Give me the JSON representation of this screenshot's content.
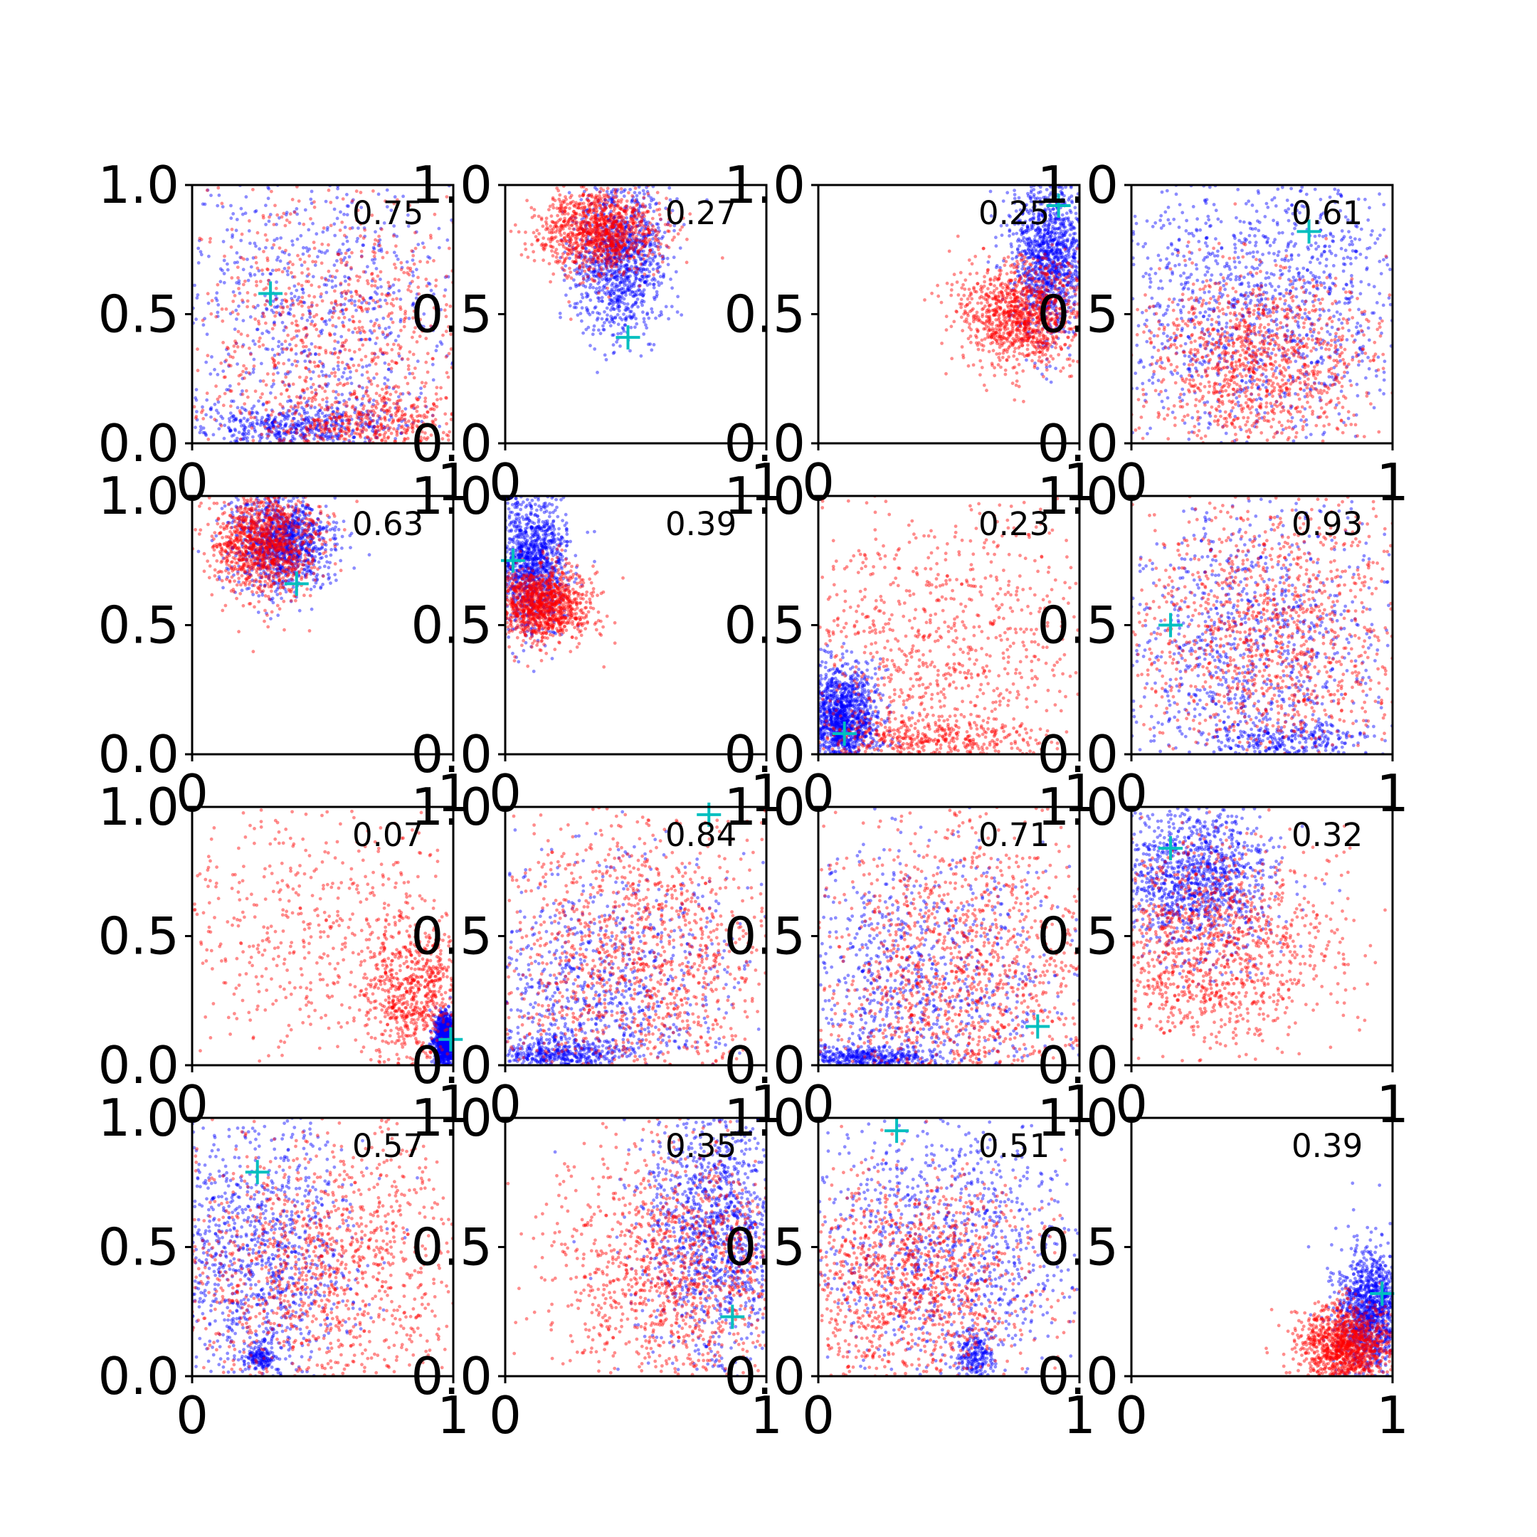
{
  "chart_data": {
    "type": "scatter",
    "grid_rows": 4,
    "grid_cols": 4,
    "xlim": [
      0,
      1
    ],
    "ylim": [
      0,
      1
    ],
    "xticks": [
      "0",
      "1"
    ],
    "yticks": [
      "0.0",
      "0.5",
      "1.0"
    ],
    "colors": {
      "series_a": "#0000ff",
      "series_b": "#ff0000",
      "marker": "#00bfbf"
    },
    "panels": [
      {
        "label": "0.75",
        "marker": [
          0.3,
          0.58
        ],
        "blue": [
          {
            "cx": 0.5,
            "cy": 0.5,
            "sx": 0.3,
            "sy": 0.3,
            "w": 0.6
          },
          {
            "cx": 0.4,
            "cy": 0.06,
            "sx": 0.18,
            "sy": 0.04,
            "w": 0.4
          }
        ],
        "red": [
          {
            "cx": 0.55,
            "cy": 0.4,
            "sx": 0.3,
            "sy": 0.3,
            "w": 0.7
          },
          {
            "cx": 0.7,
            "cy": 0.08,
            "sx": 0.2,
            "sy": 0.06,
            "w": 0.3
          }
        ]
      },
      {
        "label": "0.27",
        "marker": [
          0.47,
          0.41
        ],
        "blue": [
          {
            "cx": 0.44,
            "cy": 0.72,
            "sx": 0.09,
            "sy": 0.15,
            "w": 1
          }
        ],
        "red": [
          {
            "cx": 0.36,
            "cy": 0.82,
            "sx": 0.12,
            "sy": 0.08,
            "w": 1
          }
        ]
      },
      {
        "label": "0.25",
        "marker": [
          0.92,
          0.92
        ],
        "blue": [
          {
            "cx": 0.88,
            "cy": 0.72,
            "sx": 0.07,
            "sy": 0.15,
            "w": 1
          }
        ],
        "red": [
          {
            "cx": 0.78,
            "cy": 0.5,
            "sx": 0.12,
            "sy": 0.1,
            "w": 1
          }
        ]
      },
      {
        "label": "0.61",
        "marker": [
          0.68,
          0.82
        ],
        "blue": [
          {
            "cx": 0.5,
            "cy": 0.55,
            "sx": 0.3,
            "sy": 0.28,
            "w": 1
          }
        ],
        "red": [
          {
            "cx": 0.48,
            "cy": 0.32,
            "sx": 0.22,
            "sy": 0.18,
            "w": 1
          }
        ]
      },
      {
        "label": "0.63",
        "marker": [
          0.4,
          0.66
        ],
        "blue": [
          {
            "cx": 0.34,
            "cy": 0.82,
            "sx": 0.09,
            "sy": 0.09,
            "w": 1
          }
        ],
        "red": [
          {
            "cx": 0.28,
            "cy": 0.82,
            "sx": 0.1,
            "sy": 0.1,
            "w": 1
          }
        ]
      },
      {
        "label": "0.39",
        "marker": [
          0.03,
          0.75
        ],
        "blue": [
          {
            "cx": 0.1,
            "cy": 0.74,
            "sx": 0.07,
            "sy": 0.13,
            "w": 1
          }
        ],
        "red": [
          {
            "cx": 0.14,
            "cy": 0.58,
            "sx": 0.09,
            "sy": 0.07,
            "w": 1
          }
        ]
      },
      {
        "label": "0.23",
        "marker": [
          0.1,
          0.08
        ],
        "blue": [
          {
            "cx": 0.09,
            "cy": 0.14,
            "sx": 0.07,
            "sy": 0.1,
            "w": 1
          }
        ],
        "red": [
          {
            "cx": 0.45,
            "cy": 0.4,
            "sx": 0.3,
            "sy": 0.3,
            "w": 0.7
          },
          {
            "cx": 0.4,
            "cy": 0.06,
            "sx": 0.25,
            "sy": 0.04,
            "w": 0.3
          }
        ]
      },
      {
        "label": "0.93",
        "marker": [
          0.15,
          0.5
        ],
        "blue": [
          {
            "cx": 0.45,
            "cy": 0.4,
            "sx": 0.3,
            "sy": 0.3,
            "w": 0.8
          },
          {
            "cx": 0.6,
            "cy": 0.05,
            "sx": 0.15,
            "sy": 0.04,
            "w": 0.2
          }
        ],
        "red": [
          {
            "cx": 0.55,
            "cy": 0.45,
            "sx": 0.28,
            "sy": 0.28,
            "w": 1
          }
        ]
      },
      {
        "label": "0.07",
        "marker": [
          0.99,
          0.1
        ],
        "blue": [
          {
            "cx": 0.97,
            "cy": 0.1,
            "sx": 0.02,
            "sy": 0.05,
            "w": 1
          }
        ],
        "red": [
          {
            "cx": 0.85,
            "cy": 0.28,
            "sx": 0.1,
            "sy": 0.15,
            "w": 0.6
          },
          {
            "cx": 0.4,
            "cy": 0.55,
            "sx": 0.28,
            "sy": 0.25,
            "w": 0.4
          }
        ]
      },
      {
        "label": "0.84",
        "marker": [
          0.78,
          0.97
        ],
        "blue": [
          {
            "cx": 0.35,
            "cy": 0.3,
            "sx": 0.28,
            "sy": 0.25,
            "w": 0.7
          },
          {
            "cx": 0.2,
            "cy": 0.04,
            "sx": 0.12,
            "sy": 0.03,
            "w": 0.3
          }
        ],
        "red": [
          {
            "cx": 0.5,
            "cy": 0.4,
            "sx": 0.3,
            "sy": 0.3,
            "w": 1
          }
        ]
      },
      {
        "label": "0.71",
        "marker": [
          0.84,
          0.15
        ],
        "blue": [
          {
            "cx": 0.35,
            "cy": 0.3,
            "sx": 0.3,
            "sy": 0.28,
            "w": 0.7
          },
          {
            "cx": 0.2,
            "cy": 0.03,
            "sx": 0.15,
            "sy": 0.02,
            "w": 0.3
          }
        ],
        "red": [
          {
            "cx": 0.55,
            "cy": 0.35,
            "sx": 0.3,
            "sy": 0.3,
            "w": 1
          }
        ]
      },
      {
        "label": "0.32",
        "marker": [
          0.15,
          0.84
        ],
        "blue": [
          {
            "cx": 0.25,
            "cy": 0.72,
            "sx": 0.15,
            "sy": 0.15,
            "w": 1
          }
        ],
        "red": [
          {
            "cx": 0.3,
            "cy": 0.45,
            "sx": 0.25,
            "sy": 0.2,
            "w": 1
          }
        ]
      },
      {
        "label": "0.57",
        "marker": [
          0.25,
          0.79
        ],
        "blue": [
          {
            "cx": 0.25,
            "cy": 0.45,
            "sx": 0.18,
            "sy": 0.28,
            "w": 0.85
          },
          {
            "cx": 0.26,
            "cy": 0.07,
            "sx": 0.03,
            "sy": 0.03,
            "w": 0.15
          }
        ],
        "red": [
          {
            "cx": 0.5,
            "cy": 0.4,
            "sx": 0.3,
            "sy": 0.28,
            "w": 1
          }
        ]
      },
      {
        "label": "0.35",
        "marker": [
          0.87,
          0.23
        ],
        "blue": [
          {
            "cx": 0.82,
            "cy": 0.55,
            "sx": 0.15,
            "sy": 0.25,
            "w": 1
          }
        ],
        "red": [
          {
            "cx": 0.65,
            "cy": 0.4,
            "sx": 0.25,
            "sy": 0.25,
            "w": 1
          }
        ]
      },
      {
        "label": "0.51",
        "marker": [
          0.3,
          0.95
        ],
        "blue": [
          {
            "cx": 0.5,
            "cy": 0.5,
            "sx": 0.28,
            "sy": 0.28,
            "w": 0.8
          },
          {
            "cx": 0.6,
            "cy": 0.08,
            "sx": 0.04,
            "sy": 0.05,
            "w": 0.2
          }
        ],
        "red": [
          {
            "cx": 0.35,
            "cy": 0.35,
            "sx": 0.25,
            "sy": 0.22,
            "w": 1
          }
        ]
      },
      {
        "label": "0.39",
        "marker": [
          0.96,
          0.32
        ],
        "blue": [
          {
            "cx": 0.92,
            "cy": 0.25,
            "sx": 0.07,
            "sy": 0.12,
            "w": 1
          }
        ],
        "red": [
          {
            "cx": 0.83,
            "cy": 0.12,
            "sx": 0.09,
            "sy": 0.08,
            "w": 1
          }
        ]
      }
    ]
  }
}
